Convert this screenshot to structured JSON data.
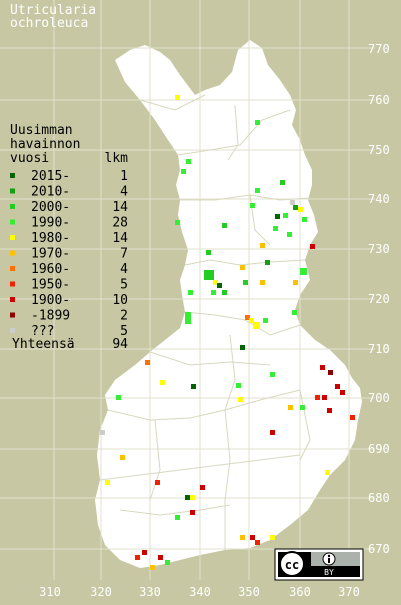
{
  "title": [
    "Utricularia",
    "ochroleuca"
  ],
  "legend": {
    "heading": [
      "Uusimman",
      "havainnon"
    ],
    "col_year": "vuosi",
    "col_count": "lkm",
    "rows": [
      {
        "label": "2015-",
        "count": "1",
        "color": "#006400"
      },
      {
        "label": "2010-",
        "count": "4",
        "color": "#11a111"
      },
      {
        "label": "2000-",
        "count": "14",
        "color": "#22cc22"
      },
      {
        "label": "1990-",
        "count": "28",
        "color": "#33ee33"
      },
      {
        "label": "1980-",
        "count": "14",
        "color": "#ffff00"
      },
      {
        "label": "1970-",
        "count": "7",
        "color": "#ffc000"
      },
      {
        "label": "1960-",
        "count": "4",
        "color": "#ff7000"
      },
      {
        "label": "1950-",
        "count": "5",
        "color": "#ee2200"
      },
      {
        "label": "1900-",
        "count": "10",
        "color": "#cc0000"
      },
      {
        "label": "-1899",
        "count": "2",
        "color": "#880000"
      },
      {
        "label": "???",
        "count": "5",
        "color": "#cccccc"
      }
    ],
    "total_label": "Yhteensä",
    "total_count": "94"
  },
  "grid": {
    "y_ticks": [
      "770",
      "760",
      "750",
      "740",
      "730",
      "720",
      "710",
      "700",
      "690",
      "680",
      "670"
    ],
    "x_ticks": [
      "310",
      "320",
      "330",
      "340",
      "350",
      "360",
      "370"
    ]
  },
  "license_badge": {
    "cc": "cc",
    "by": "BY"
  },
  "colors": {
    "background": "#c7c8a3",
    "land": "#ffffff",
    "grid": "#e2e2cc",
    "border": "#d8d8c0"
  },
  "observations": [
    {
      "cls": "1990-",
      "x": 341,
      "y": 716
    },
    {
      "cls": "1980-",
      "x": 337,
      "y": 761
    }
  ]
}
